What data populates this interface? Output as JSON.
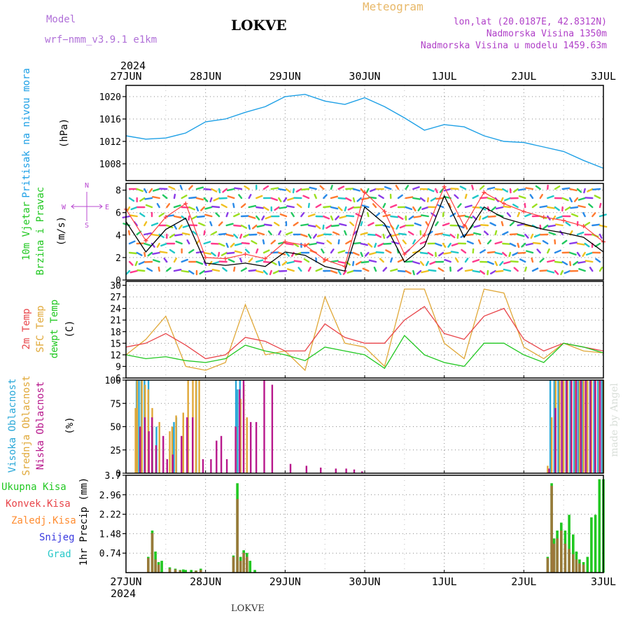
{
  "header": {
    "model_label": "Model",
    "model_name": "wrf−nmm_v3.9.1  e1km",
    "station": "LOKVE",
    "meteogram": "Meteogram",
    "lonlat": "lon,lat (20.0187E, 42.8312N)",
    "elevation": "Nadmorska Visina 1350m",
    "model_elevation": "Nadmorska Visina u modelu 1459.63m",
    "credit": "made by Angel",
    "footer_station": "LOKVE"
  },
  "time_axis": {
    "year": "2024",
    "ticks": [
      "27JUN",
      "28JUN",
      "29JUN",
      "30JUN",
      "1JUL",
      "2JUL",
      "3JUL"
    ]
  },
  "colors": {
    "pressure": "#1ea0e6",
    "temp2m": "#e8454a",
    "sfc_temp": "#e0a838",
    "dewpt": "#22c822",
    "high_cloud": "#2aa8d8",
    "mid_cloud": "#e0a838",
    "low_cloud": "#b8188c",
    "wind_speed": "#000000",
    "gust": "#ff4040",
    "rain_total": "#22c822",
    "rain_conv": "#e8454a",
    "freezing": "#ff8c30",
    "snow": "#3a3ae0",
    "hail": "#28c8c8",
    "dir_label": "#b848d0"
  },
  "chart_data": [
    {
      "type": "line",
      "title": "",
      "ylabel": "Pritisak na nivou mora",
      "unit": "(hPa)",
      "ylim": [
        1005,
        1022
      ],
      "yticks": [
        1008,
        1012,
        1016,
        1020
      ],
      "grid": true,
      "x_days": [
        0,
        0.25,
        0.5,
        0.75,
        1,
        1.25,
        1.5,
        1.75,
        2,
        2.25,
        2.5,
        2.75,
        3,
        3.25,
        3.5,
        3.75,
        4,
        4.25,
        4.5,
        4.75,
        5,
        5.25,
        5.5,
        5.75,
        6
      ],
      "series": [
        {
          "name": "",
          "values": [
            1013,
            1012.4,
            1012.6,
            1013.5,
            1015.5,
            1016,
            1017.2,
            1018.2,
            1020,
            1020.4,
            1019.2,
            1018.6,
            1019.8,
            1018.2,
            1016.2,
            1014,
            1015,
            1014.6,
            1013,
            1012,
            1011.8,
            1011,
            1010.2,
            1008.6,
            1007.2
          ]
        }
      ]
    },
    {
      "type": "line",
      "title": "",
      "ylabel": "10m Vjetar Brzina i Pravac",
      "unit": "(m/s)",
      "direction_labels": {
        "n": "N",
        "s": "S",
        "w": "W",
        "e": "E"
      },
      "ylim": [
        0,
        8.6
      ],
      "yticks": [
        0,
        2,
        4,
        6,
        8
      ],
      "grid": true,
      "x_days": [
        0,
        0.25,
        0.5,
        0.75,
        1,
        1.25,
        1.5,
        1.75,
        2,
        2.25,
        2.5,
        2.75,
        3,
        3.25,
        3.5,
        3.75,
        4,
        4.25,
        4.5,
        4.75,
        5,
        5.25,
        5.5,
        5.75,
        6
      ],
      "series": [
        {
          "name": "",
          "values": [
            5.2,
            2.5,
            4.5,
            5.5,
            1.5,
            1.3,
            1.5,
            1.2,
            2.5,
            2.2,
            1.2,
            0.8,
            6.5,
            5.0,
            1.6,
            3.0,
            7.5,
            3.8,
            6.5,
            5.5,
            5.0,
            4.5,
            4.2,
            3.8,
            2.5
          ]
        },
        {
          "name": "",
          "values": [
            6.3,
            3.5,
            5.6,
            6.8,
            2.0,
            1.9,
            2.3,
            1.9,
            3.4,
            3.1,
            1.8,
            1.2,
            7.8,
            6.1,
            2.3,
            4.0,
            8.3,
            4.8,
            7.8,
            6.8,
            6.1,
            5.6,
            5.3,
            4.8,
            3.4
          ]
        }
      ]
    },
    {
      "type": "line",
      "title": "",
      "ylabel": "2m Temp SFC Temp dewpt Temp",
      "unit": "(C)",
      "ylim": [
        6,
        31
      ],
      "yticks": [
        6,
        9,
        12,
        15,
        18,
        21,
        24,
        27,
        30
      ],
      "grid": true,
      "x_days": [
        0,
        0.25,
        0.5,
        0.75,
        1,
        1.25,
        1.5,
        1.75,
        2,
        2.25,
        2.5,
        2.75,
        3,
        3.25,
        3.5,
        3.75,
        4,
        4.25,
        4.5,
        4.75,
        5,
        5.25,
        5.5,
        5.75,
        6
      ],
      "series": [
        {
          "name": "2m Temp",
          "values": [
            14,
            15,
            17.5,
            14.5,
            11,
            12,
            16.5,
            15.5,
            13,
            13,
            20,
            16.5,
            15,
            15,
            21,
            24.5,
            17.5,
            16,
            22,
            24,
            16,
            13,
            15,
            14,
            13
          ]
        },
        {
          "name": "SFC Temp",
          "values": [
            12,
            16,
            22,
            9,
            8,
            10,
            25,
            12,
            13,
            8,
            27,
            15,
            14,
            9,
            29,
            29,
            15,
            11,
            29,
            28,
            14,
            11,
            15,
            13,
            12.5
          ]
        },
        {
          "name": "dewpt Temp",
          "values": [
            12,
            11,
            11.5,
            10.5,
            10,
            11,
            14.5,
            13,
            12,
            10.5,
            14,
            13,
            12,
            8.5,
            17,
            12,
            10,
            9,
            15,
            15,
            12,
            10,
            15,
            14,
            12.5
          ]
        }
      ]
    },
    {
      "type": "bar",
      "title": "",
      "ylabel": "Visoka Oblacnost Srednja Oblacnost Niska Oblacnost",
      "unit": "(%)",
      "ylim": [
        0,
        100
      ],
      "yticks": [
        0,
        25,
        50,
        75,
        100
      ],
      "grid": true,
      "series": [
        {
          "name": "Visoka Oblacnost",
          "x": [
            0.15,
            0.18,
            0.21,
            0.25,
            0.3,
            0.35,
            0.4,
            0.6,
            0.62,
            0.65,
            0.9,
            1.4,
            1.42,
            1.45,
            5.35,
            5.4,
            5.45,
            5.5,
            5.55,
            5.6,
            5.65,
            5.7,
            5.75,
            5.8,
            5.85,
            5.9,
            5.95,
            6.0
          ],
          "values": [
            100,
            100,
            100,
            100,
            100,
            50,
            50,
            50,
            55,
            60,
            100,
            100,
            90,
            100,
            100,
            100,
            100,
            100,
            100,
            100,
            100,
            100,
            100,
            100,
            100,
            100,
            100,
            100
          ]
        },
        {
          "name": "Srednja Oblacnost",
          "x": [
            0.12,
            0.14,
            0.2,
            0.24,
            0.28,
            0.33,
            0.42,
            0.55,
            0.58,
            0.63,
            0.72,
            0.78,
            0.84,
            0.88,
            0.92,
            1.38,
            1.44,
            1.48,
            1.52,
            5.3,
            5.35,
            5.4,
            5.45,
            5.5,
            5.55,
            5.6,
            5.65,
            5.7,
            5.75,
            5.8,
            5.85,
            5.9,
            5.95,
            6.0
          ],
          "values": [
            70,
            100,
            100,
            95,
            90,
            70,
            55,
            45,
            50,
            62,
            65,
            100,
            100,
            100,
            100,
            50,
            80,
            95,
            60,
            8,
            60,
            100,
            100,
            100,
            100,
            100,
            100,
            100,
            100,
            100,
            100,
            100,
            100,
            100
          ]
        },
        {
          "name": "Niska Oblacnost",
          "x": [
            0.16,
            0.22,
            0.27,
            0.31,
            0.36,
            0.45,
            0.5,
            0.57,
            0.68,
            0.75,
            0.82,
            0.95,
            1.05,
            1.12,
            1.18,
            1.25,
            1.36,
            1.41,
            1.46,
            1.55,
            1.62,
            1.72,
            1.82,
            2.05,
            2.25,
            2.43,
            2.62,
            2.75,
            2.85,
            2.95,
            5.3,
            5.38,
            5.46,
            5.52,
            5.58,
            5.64,
            5.7,
            5.76,
            5.82,
            5.88,
            5.94
          ],
          "values": [
            50,
            60,
            45,
            60,
            30,
            40,
            15,
            20,
            40,
            60,
            60,
            15,
            15,
            35,
            40,
            15,
            50,
            90,
            100,
            55,
            55,
            100,
            95,
            10,
            8,
            6,
            5,
            5,
            4,
            2,
            5,
            70,
            100,
            100,
            100,
            100,
            100,
            100,
            100,
            100,
            100
          ]
        }
      ]
    },
    {
      "type": "bar",
      "title": "",
      "ylabel": "1hr Precip",
      "unit": "(mm)",
      "ylim": [
        0,
        3.7
      ],
      "yticks": [
        0.74,
        1.48,
        2.22,
        2.96,
        3.7
      ],
      "grid": true,
      "legend": [
        "Ukupna Kisa",
        "Konvek.Kisa",
        "Zaledj.Kisa",
        "Snijeg",
        "Grad"
      ],
      "series": [
        {
          "name": "Ukupna Kisa",
          "x": [
            0.28,
            0.33,
            0.37,
            0.41,
            0.45,
            0.55,
            0.62,
            0.68,
            0.72,
            0.75,
            0.82,
            0.88,
            0.94,
            1.35,
            1.4,
            1.44,
            1.48,
            1.52,
            1.56,
            1.62,
            5.3,
            5.35,
            5.38,
            5.42,
            5.47,
            5.52,
            5.57,
            5.62,
            5.66,
            5.7,
            5.75,
            5.8,
            5.85,
            5.9,
            5.95,
            6.0
          ],
          "values": [
            0.6,
            1.6,
            0.8,
            0.4,
            0.45,
            0.2,
            0.15,
            0.1,
            0.12,
            0.1,
            0.1,
            0.08,
            0.15,
            0.65,
            3.4,
            0.6,
            0.85,
            0.75,
            0.45,
            0.1,
            0.6,
            3.4,
            1.3,
            1.6,
            1.9,
            1.6,
            2.2,
            1.45,
            0.8,
            0.5,
            0.4,
            0.6,
            2.1,
            2.2,
            3.55,
            3.55
          ]
        },
        {
          "name": "Konvek.Kisa",
          "x": [
            0.28,
            0.33,
            0.37,
            0.41,
            0.55,
            0.62,
            0.68,
            0.88,
            0.94,
            1.35,
            1.4,
            1.44,
            1.48,
            1.52,
            5.3,
            5.35,
            5.38,
            5.42,
            5.47,
            5.52,
            5.57,
            5.62,
            5.66,
            5.7,
            5.75
          ],
          "values": [
            0.55,
            1.5,
            0.5,
            0.3,
            0.15,
            0.12,
            0.08,
            0.07,
            0.1,
            0.6,
            2.8,
            0.45,
            0.75,
            0.6,
            0.55,
            3.3,
            1.1,
            1.3,
            1.6,
            1.1,
            0.9,
            0.7,
            0.5,
            0.35,
            0.3
          ]
        }
      ]
    }
  ]
}
